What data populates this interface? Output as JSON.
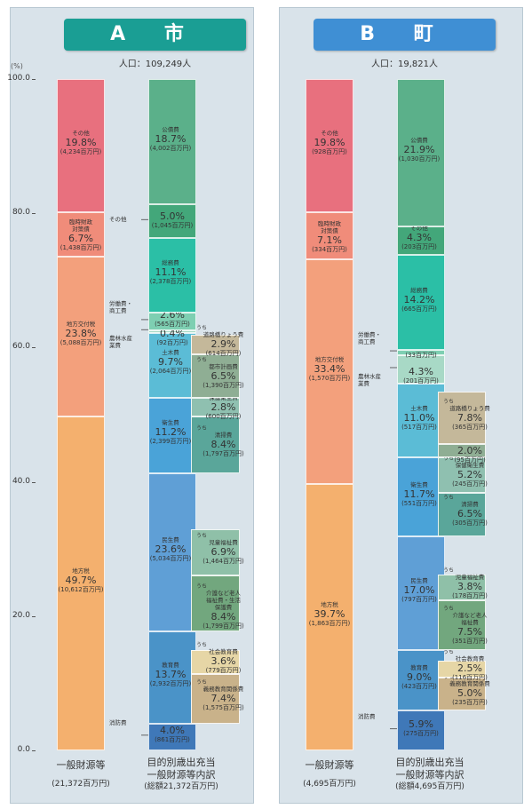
{
  "unit_label": "(%)",
  "yticks": [
    "100.0",
    "80.0",
    "60.0",
    "40.0",
    "20.0",
    "0.0"
  ],
  "colors": {
    "panel_bg": "#d9e3ea",
    "banner_a": "#1a9e94",
    "banner_b": "#3f8fd4",
    "sonota": "#e8707e",
    "rinji": "#f08c7a",
    "chihou_koufu": "#f3a07c",
    "chihou_zei": "#f4b06e",
    "kosai": "#5bb08a",
    "sonota_exp": "#43a77a",
    "somu": "#2bbfa6",
    "roudou": "#7ecfb2",
    "norin": "#a8d9c6",
    "doboku": "#5bbcd6",
    "eisei": "#4aa3d8",
    "minsei": "#5f9fd6",
    "kyoiku": "#4a93c8",
    "shobo": "#3f78b8",
    "sub_road": "#c4b89a",
    "sub_city": "#8fae94",
    "sub_health": "#8fc0b0",
    "sub_clean": "#5aa69a",
    "sub_child": "#8fc0a8",
    "sub_care": "#72a77e",
    "sub_social": "#e6d6a6",
    "sub_compulsory": "#c9b28a"
  },
  "panels": [
    {
      "title": "A 市",
      "population": "人口：109,249人",
      "footer_left": {
        "label": "一般財源等",
        "amount": "(21,372百万円)"
      },
      "footer_right": {
        "label1": "目的別歳出充当",
        "label2": "一般財源等内訳",
        "amount": "(総額21,372百万円)"
      }
    },
    {
      "title": "B 町",
      "population": "人口：19,821人",
      "footer_left": {
        "label": "一般財源等",
        "amount": "(4,695百万円)"
      },
      "footer_right": {
        "label1": "目的別歳出充当",
        "label2": "一般財源等内訳",
        "amount": "(総額4,695百万円)"
      }
    }
  ],
  "chart_data": [
    {
      "type": "stacked-bar",
      "title": "A 市",
      "ylim": [
        0,
        100
      ],
      "ylabel": "(%)",
      "revenue_bar": {
        "label": "一般財源等",
        "segments": [
          {
            "name": "地方税",
            "pct": 49.7,
            "pct_label": "49.7%",
            "amount": "(10,612百万円)",
            "color_key": "chihou_zei"
          },
          {
            "name": "地方交付税",
            "pct": 23.8,
            "pct_label": "23.8%",
            "amount": "(5,088百万円)",
            "color_key": "chihou_koufu"
          },
          {
            "name": "臨時財政対策債",
            "pct": 6.7,
            "pct_label": "6.7%",
            "amount": "(1,438百万円)",
            "color_key": "rinji"
          },
          {
            "name": "その他",
            "pct": 19.8,
            "pct_label": "19.8%",
            "amount": "(4,234百万円)",
            "color_key": "sonota"
          }
        ]
      },
      "expenditure_bar": {
        "label": "目的別歳出充当一般財源等内訳",
        "segments": [
          {
            "name": "消防費",
            "pct": 4.0,
            "pct_label": "4.0%",
            "amount": "(861百万円)",
            "color_key": "shobo",
            "name_outside": true
          },
          {
            "name": "教育費",
            "pct": 13.7,
            "pct_label": "13.7%",
            "amount": "(2,932百万円)",
            "color_key": "kyoiku"
          },
          {
            "name": "民生費",
            "pct": 23.6,
            "pct_label": "23.6%",
            "amount": "(5,034百万円)",
            "color_key": "minsei"
          },
          {
            "name": "衛生費",
            "pct": 11.2,
            "pct_label": "11.2%",
            "amount": "(2,399百万円)",
            "color_key": "eisei"
          },
          {
            "name": "土木費",
            "pct": 9.7,
            "pct_label": "9.7%",
            "amount": "(2,064百万円)",
            "color_key": "doboku"
          },
          {
            "name": "農林水産業費",
            "pct": 0.4,
            "pct_label": "0.4%",
            "amount": "(92百万円)",
            "color_key": "norin",
            "name_outside": true
          },
          {
            "name": "労働費・商工費",
            "pct": 2.6,
            "pct_label": "2.6%",
            "amount": "(565百万円)",
            "color_key": "roudou",
            "name_outside": true
          },
          {
            "name": "総務費",
            "pct": 11.1,
            "pct_label": "11.1%",
            "amount": "(2,378百万円)",
            "color_key": "somu"
          },
          {
            "name": "その他",
            "pct": 5.0,
            "pct_label": "5.0%",
            "amount": "(1,045百万円)",
            "color_key": "sonota_exp",
            "name_outside": true
          },
          {
            "name": "公債費",
            "pct": 18.7,
            "pct_label": "18.7%",
            "amount": "(4,002百万円)",
            "color_key": "kosai"
          }
        ]
      },
      "breakdowns": [
        {
          "parent": "教育費",
          "uchi": "うち",
          "items": [
            {
              "name": "義務教育関係費",
              "pct": 7.4,
              "pct_label": "7.4%",
              "amount": "(1,575百万円)",
              "color_key": "sub_compulsory"
            },
            {
              "name": "社会教育費",
              "pct": 3.6,
              "pct_label": "3.6%",
              "amount": "(779百万円)",
              "color_key": "sub_social"
            }
          ]
        },
        {
          "parent": "民生費",
          "uchi": "うち",
          "items": [
            {
              "name": "介護など老人福祉費・生活保護費",
              "pct": 8.4,
              "pct_label": "8.4%",
              "amount": "(1,799百万円)",
              "color_key": "sub_care"
            },
            {
              "name": "児童福祉費",
              "pct": 6.9,
              "pct_label": "6.9%",
              "amount": "(1,464百万円)",
              "color_key": "sub_child"
            }
          ]
        },
        {
          "parent": "衛生費",
          "uchi": "うち",
          "items": [
            {
              "name": "清掃費",
              "pct": 8.4,
              "pct_label": "8.4%",
              "amount": "(1,797百万円)",
              "color_key": "sub_clean"
            },
            {
              "name": "保健衛生費",
              "pct": 2.8,
              "pct_label": "2.8%",
              "amount": "(600百万円)",
              "color_key": "sub_health"
            }
          ]
        },
        {
          "parent": "土木費",
          "uchi": "うち",
          "items": [
            {
              "name": "都市計画費",
              "pct": 6.5,
              "pct_label": "6.5%",
              "amount": "(1,390百万円)",
              "color_key": "sub_city"
            },
            {
              "name": "道路橋りょう費",
              "pct": 2.9,
              "pct_label": "2.9%",
              "amount": "(614百万円)",
              "color_key": "sub_road"
            }
          ]
        }
      ]
    },
    {
      "type": "stacked-bar",
      "title": "B 町",
      "ylim": [
        0,
        100
      ],
      "ylabel": "(%)",
      "revenue_bar": {
        "label": "一般財源等",
        "segments": [
          {
            "name": "地方税",
            "pct": 39.7,
            "pct_label": "39.7%",
            "amount": "(1,863百万円)",
            "color_key": "chihou_zei"
          },
          {
            "name": "地方交付税",
            "pct": 33.4,
            "pct_label": "33.4%",
            "amount": "(1,570百万円)",
            "color_key": "chihou_koufu"
          },
          {
            "name": "臨時財政対策債",
            "pct": 7.1,
            "pct_label": "7.1%",
            "amount": "(334百万円)",
            "color_key": "rinji"
          },
          {
            "name": "その他",
            "pct": 19.8,
            "pct_label": "19.8%",
            "amount": "(928百万円)",
            "color_key": "sonota"
          }
        ]
      },
      "expenditure_bar": {
        "label": "目的別歳出充当一般財源等内訳",
        "segments": [
          {
            "name": "消防費",
            "pct": 5.9,
            "pct_label": "5.9%",
            "amount": "(275百万円)",
            "color_key": "shobo",
            "name_outside": true
          },
          {
            "name": "教育費",
            "pct": 9.0,
            "pct_label": "9.0%",
            "amount": "(423百万円)",
            "color_key": "kyoiku"
          },
          {
            "name": "民生費",
            "pct": 17.0,
            "pct_label": "17.0%",
            "amount": "(797百万円)",
            "color_key": "minsei"
          },
          {
            "name": "衛生費",
            "pct": 11.7,
            "pct_label": "11.7%",
            "amount": "(551百万円)",
            "color_key": "eisei"
          },
          {
            "name": "土木費",
            "pct": 11.0,
            "pct_label": "11.0%",
            "amount": "(517百万円)",
            "color_key": "doboku"
          },
          {
            "name": "農林水産業費",
            "pct": 4.3,
            "pct_label": "4.3%",
            "amount": "(201百万円)",
            "color_key": "norin",
            "name_outside": true
          },
          {
            "name": "労働費・商工費",
            "pct": 0.7,
            "pct_label": "0.7%",
            "amount": "(33百万円)",
            "color_key": "roudou",
            "name_outside": true
          },
          {
            "name": "総務費",
            "pct": 14.2,
            "pct_label": "14.2%",
            "amount": "(665百万円)",
            "color_key": "somu"
          },
          {
            "name": "その他",
            "pct": 4.3,
            "pct_label": "4.3%",
            "amount": "(203百万円)",
            "color_key": "sonota_exp"
          },
          {
            "name": "公債費",
            "pct": 21.9,
            "pct_label": "21.9%",
            "amount": "(1,030百万円)",
            "color_key": "kosai"
          }
        ]
      },
      "breakdowns": [
        {
          "parent": "教育費",
          "uchi": "うち",
          "items": [
            {
              "name": "義務教育関係費",
              "pct": 5.0,
              "pct_label": "5.0%",
              "amount": "(235百万円)",
              "color_key": "sub_compulsory"
            },
            {
              "name": "社会教育費",
              "pct": 2.5,
              "pct_label": "2.5%",
              "amount": "(116百万円)",
              "color_key": "sub_social"
            }
          ]
        },
        {
          "parent": "民生費",
          "uchi": "うち",
          "items": [
            {
              "name": "介護など老人福祉費",
              "pct": 7.5,
              "pct_label": "7.5%",
              "amount": "(351百万円)",
              "color_key": "sub_care"
            },
            {
              "name": "児童福祉費",
              "pct": 3.8,
              "pct_label": "3.8%",
              "amount": "(178百万円)",
              "color_key": "sub_child"
            }
          ]
        },
        {
          "parent": "衛生費",
          "uchi": "うち",
          "items": [
            {
              "name": "清掃費",
              "pct": 6.5,
              "pct_label": "6.5%",
              "amount": "(305百万円)",
              "color_key": "sub_clean"
            },
            {
              "name": "保健衛生費",
              "pct": 5.2,
              "pct_label": "5.2%",
              "amount": "(245百万円)",
              "color_key": "sub_health"
            }
          ]
        },
        {
          "parent": "土木費",
          "uchi": "うち",
          "items": [
            {
              "name": "都市計画費",
              "pct": 2.0,
              "pct_label": "2.0%",
              "amount": "(95百万円)",
              "color_key": "sub_city"
            },
            {
              "name": "道路橋りょう費",
              "pct": 7.8,
              "pct_label": "7.8%",
              "amount": "(365百万円)",
              "color_key": "sub_road"
            }
          ]
        }
      ]
    }
  ]
}
